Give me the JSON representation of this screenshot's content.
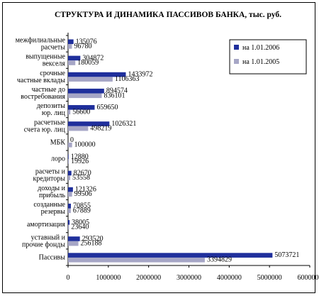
{
  "chart_data": {
    "type": "bar",
    "orientation": "horizontal",
    "title": "СТРУКТУРА И ДИНАМИКА ПАССИВОВ БАНКА, тыс. руб.",
    "categories": [
      [
        "межфилиальные",
        "расчеты"
      ],
      [
        "выпущенные",
        "векселя"
      ],
      [
        "срочные",
        "частные вклады"
      ],
      [
        "частные до",
        "востребования"
      ],
      [
        "депозиты",
        "юр. лиц"
      ],
      [
        "расчетные",
        "счета юр. лиц"
      ],
      [
        "МБК"
      ],
      [
        "лоро"
      ],
      [
        "расчеты и",
        "кредиторы"
      ],
      [
        "доходы и",
        "прибыль"
      ],
      [
        "созданные",
        "резервы"
      ],
      [
        "амортизация"
      ],
      [
        "уставный и",
        "прочие фонды"
      ],
      [
        "Пассивы"
      ]
    ],
    "series": [
      {
        "name": "на 1.01.2006",
        "color": "#1f2f9c",
        "values": [
          135076,
          304872,
          1433972,
          894574,
          659650,
          1026321,
          0,
          12880,
          82670,
          121326,
          70855,
          38005,
          293520,
          5073721
        ],
        "labels": [
          "135076",
          "304872",
          "1433972",
          "894574",
          "659650",
          "1026321",
          "0",
          "12880",
          "82670",
          "121326",
          "70855",
          "38005",
          "293520",
          "5073721"
        ]
      },
      {
        "name": "на 1.01.2005",
        "color": "#a6a6c6",
        "values": [
          96780,
          180059,
          1106363,
          836101,
          56600,
          498219,
          100000,
          19926,
          53558,
          99506,
          67889,
          23640,
          256188,
          3394829
        ],
        "labels": [
          "96780",
          "180059",
          "1106363",
          "836101",
          "56600",
          "498219",
          "100000",
          "19926",
          "53558",
          "99506",
          "67889",
          "23640",
          "256188",
          "3394829"
        ]
      }
    ],
    "xlim": [
      0,
      6000000
    ],
    "xticks": [
      "0",
      "1000000",
      "2000000",
      "3000000",
      "4000000",
      "5000000",
      "6000000"
    ],
    "legend_position": "right",
    "grid": false
  }
}
